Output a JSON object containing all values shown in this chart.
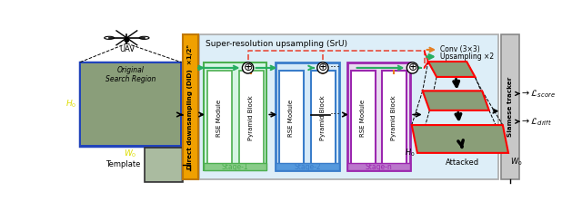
{
  "fig_width": 6.4,
  "fig_height": 2.33,
  "dpi": 100,
  "bg_color": "#ffffff",
  "title_sru": "Super-resolution upsampling (SrU)",
  "label_did": "Direct downsampling (DiD)  ×1/2ⁿ",
  "label_siamese": "Siamese tracker",
  "label_stage1": "Stage-1",
  "label_stage2": "Stage-2",
  "label_stagen": "Stage-n",
  "label_attacked": "Attacked",
  "label_uav": "UAV",
  "label_template": "Template",
  "label_h0_left": "H₀",
  "label_w0_bottom": "W₀",
  "label_h0_attacked": "H₀",
  "label_w0_attacked": "W₀",
  "label_rse": "RSE Module",
  "label_pyr": "Pyramid Block",
  "label_conv": "Conv (3×3)",
  "label_upsamp": "Upsampling ×2",
  "color_stage1_bg": "#d5f5e3",
  "color_stage1_ec": "#4CAF50",
  "color_stage2_bg": "#d6eaf8",
  "color_stage2_ec": "#3a7dca",
  "color_stagen_bg": "#e8daef",
  "color_stagen_ec": "#9b27af",
  "color_orange": "#e67e22",
  "color_green_arrow": "#27ae60",
  "color_red_dashed": "#e74c3c",
  "color_did": "#f0a000",
  "color_sru_bg": "#ddeef8",
  "color_sru_ec": "#aaaaaa",
  "color_siamese_bg": "#c8c8c8",
  "color_siamese_ec": "#888888"
}
